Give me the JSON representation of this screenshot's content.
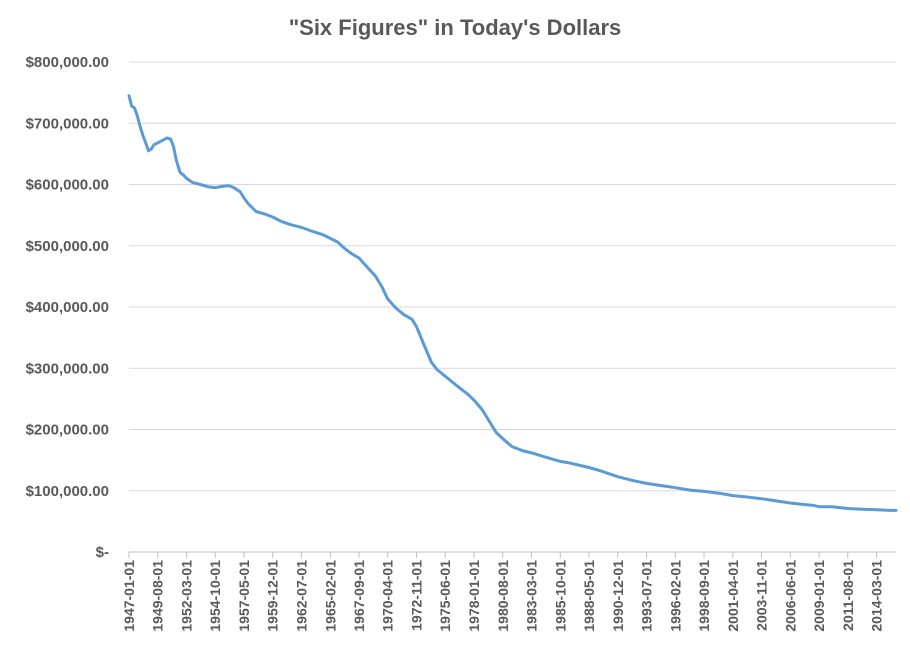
{
  "chart_data": {
    "type": "line",
    "title": "\"Six Figures\" in Today's Dollars",
    "xlabel": "",
    "ylabel": "",
    "ylim": [
      0,
      800000
    ],
    "grid": true,
    "legend": "none",
    "line_color": "#5b9bd5",
    "y_ticks": [
      {
        "value": 0,
        "label": "$-"
      },
      {
        "value": 100000,
        "label": "$100,000.00"
      },
      {
        "value": 200000,
        "label": "$200,000.00"
      },
      {
        "value": 300000,
        "label": "$300,000.00"
      },
      {
        "value": 400000,
        "label": "$400,000.00"
      },
      {
        "value": 500000,
        "label": "$500,000.00"
      },
      {
        "value": 600000,
        "label": "$600,000.00"
      },
      {
        "value": 700000,
        "label": "$700,000.00"
      },
      {
        "value": 800000,
        "label": "$800,000.00"
      }
    ],
    "x_tick_labels": [
      "1947-01-01",
      "1949-08-01",
      "1952-03-01",
      "1954-10-01",
      "1957-05-01",
      "1959-12-01",
      "1962-07-01",
      "1965-02-01",
      "1967-09-01",
      "1970-04-01",
      "1972-11-01",
      "1975-06-01",
      "1978-01-01",
      "1980-08-01",
      "1983-03-01",
      "1985-10-01",
      "1988-05-01",
      "1990-12-01",
      "1993-07-01",
      "1996-02-01",
      "1998-09-01",
      "2001-04-01",
      "2003-11-01",
      "2006-06-01",
      "2009-01-01",
      "2011-08-01",
      "2014-03-01"
    ],
    "x_range": [
      "1947-01-01",
      "2015-12-01"
    ],
    "series": [
      {
        "x": [
          "1947-01-01",
          "1947-04-01",
          "1947-07-01",
          "1947-10-01",
          "1948-01-01",
          "1948-04-01",
          "1948-07-01",
          "1948-10-01",
          "1949-01-01",
          "1949-04-01",
          "1949-08-01",
          "1950-01-01",
          "1950-06-01",
          "1950-10-01",
          "1951-01-01",
          "1951-04-01",
          "1951-08-01",
          "1951-12-01",
          "1952-03-01",
          "1952-10-01",
          "1953-06-01",
          "1954-03-01",
          "1954-10-01",
          "1955-06-01",
          "1956-01-01",
          "1956-06-01",
          "1957-01-01",
          "1957-05-01",
          "1957-10-01",
          "1958-06-01",
          "1959-03-01",
          "1959-12-01",
          "1960-09-01",
          "1961-06-01",
          "1962-07-01",
          "1963-06-01",
          "1964-06-01",
          "1965-02-01",
          "1965-10-01",
          "1966-06-01",
          "1967-01-01",
          "1967-09-01",
          "1968-06-01",
          "1969-03-01",
          "1969-10-01",
          "1970-04-01",
          "1971-01-01",
          "1971-09-01",
          "1972-06-01",
          "1972-11-01",
          "1973-06-01",
          "1974-03-01",
          "1974-09-01",
          "1975-06-01",
          "1976-06-01",
          "1977-06-01",
          "1978-01-01",
          "1978-10-01",
          "1979-06-01",
          "1980-01-01",
          "1980-08-01",
          "1981-06-01",
          "1982-06-01",
          "1983-03-01",
          "1984-06-01",
          "1985-10-01",
          "1986-06-01",
          "1988-05-01",
          "1989-06-01",
          "1990-12-01",
          "1992-06-01",
          "1993-07-01",
          "1995-01-01",
          "1996-02-01",
          "1997-06-01",
          "1998-09-01",
          "2000-01-01",
          "2001-04-01",
          "2002-06-01",
          "2003-11-01",
          "2005-01-01",
          "2006-06-01",
          "2007-06-01",
          "2008-07-01",
          "2009-01-01",
          "2010-03-01",
          "2011-08-01",
          "2012-09-01",
          "2014-03-01",
          "2015-06-01",
          "2015-12-01"
        ],
        "values": [
          745000,
          728000,
          725000,
          712000,
          695000,
          680000,
          668000,
          655000,
          658000,
          665000,
          668000,
          672000,
          676000,
          674000,
          662000,
          640000,
          620000,
          615000,
          610000,
          603000,
          600000,
          596000,
          595000,
          597000,
          598000,
          595000,
          588000,
          578000,
          568000,
          556000,
          552000,
          547000,
          540000,
          535000,
          530000,
          524000,
          518000,
          512000,
          506000,
          495000,
          487000,
          480000,
          465000,
          450000,
          432000,
          413000,
          398000,
          388000,
          380000,
          368000,
          342000,
          310000,
          298000,
          287000,
          272000,
          258000,
          248000,
          232000,
          212000,
          195000,
          185000,
          172000,
          165000,
          162000,
          155000,
          148000,
          146000,
          138000,
          132000,
          123000,
          116000,
          112000,
          108000,
          105000,
          101000,
          99000,
          96000,
          92000,
          90000,
          87000,
          84000,
          80000,
          78000,
          76000,
          74000,
          74000,
          71000,
          70000,
          69000,
          68000,
          68000
        ]
      }
    ]
  }
}
